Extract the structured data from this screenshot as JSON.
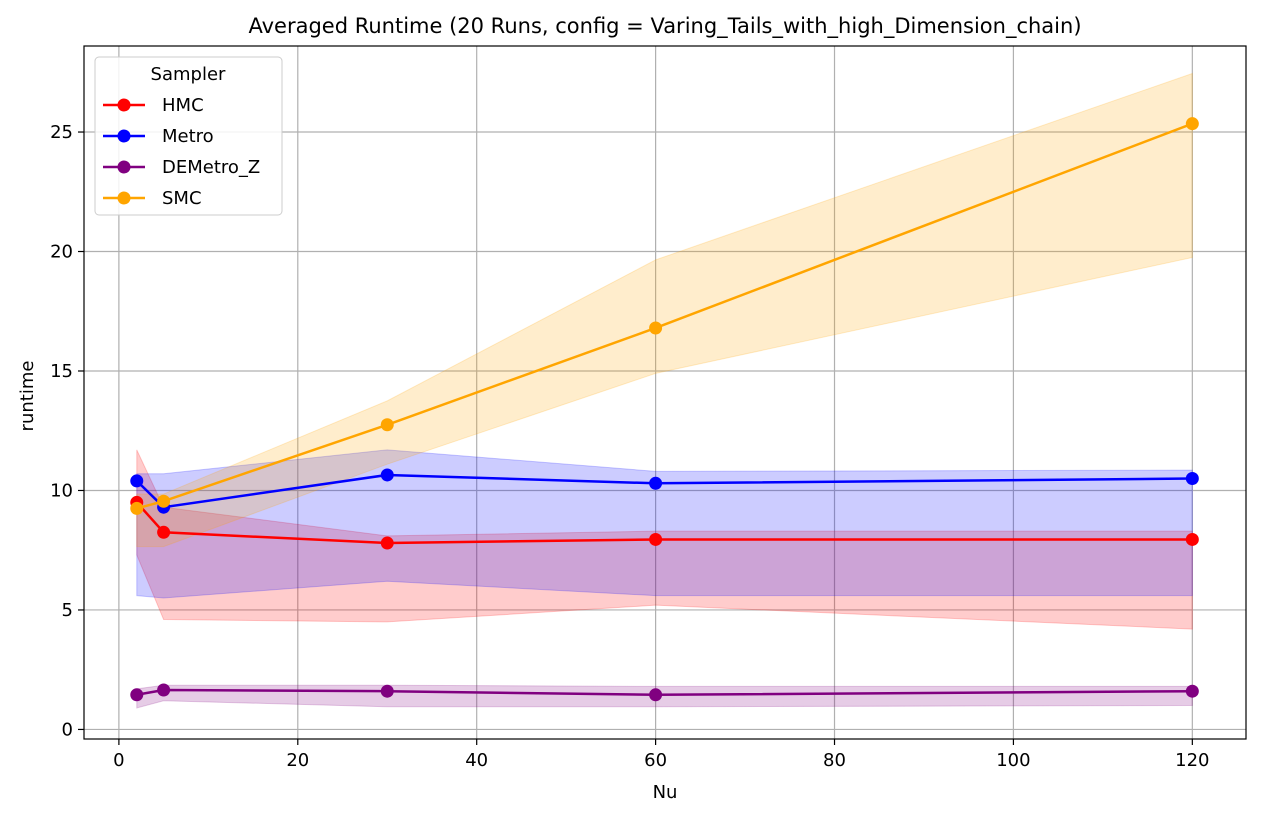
{
  "chart_data": {
    "type": "line",
    "title": "Averaged Runtime (20 Runs, config = Varing_Tails_with_high_Dimension_chain)",
    "xlabel": "Nu",
    "ylabel": "runtime",
    "xlim": [
      -3.9,
      126
    ],
    "ylim": [
      -0.4,
      28.6
    ],
    "xticks": [
      0,
      20,
      40,
      60,
      80,
      100,
      120
    ],
    "yticks": [
      0,
      5,
      10,
      15,
      20,
      25
    ],
    "grid": true,
    "legend": {
      "title": "Sampler",
      "placement": "top-left"
    },
    "x": [
      2,
      5,
      30,
      60,
      120
    ],
    "series": [
      {
        "name": "HMC",
        "color": "#ff0000",
        "band_color": "rgba(255,0,0,0.2)",
        "values": [
          9.5,
          8.25,
          7.8,
          7.95,
          7.95
        ],
        "lower": [
          7.3,
          4.6,
          4.5,
          5.2,
          4.2
        ],
        "upper": [
          11.7,
          9.3,
          8.1,
          8.3,
          8.3
        ]
      },
      {
        "name": "Metro",
        "color": "#0000ff",
        "band_color": "rgba(0,0,255,0.2)",
        "values": [
          10.4,
          9.3,
          10.65,
          10.3,
          10.5
        ],
        "lower": [
          5.6,
          5.5,
          6.2,
          5.6,
          5.6
        ],
        "upper": [
          10.7,
          10.7,
          11.7,
          10.8,
          10.85
        ]
      },
      {
        "name": "DEMetro_Z",
        "color": "#800080",
        "band_color": "rgba(128,0,128,0.2)",
        "values": [
          1.45,
          1.65,
          1.6,
          1.45,
          1.6
        ],
        "lower": [
          0.9,
          1.2,
          0.95,
          0.95,
          1.0
        ],
        "upper": [
          1.7,
          1.85,
          1.85,
          1.8,
          1.8
        ]
      },
      {
        "name": "SMC",
        "color": "#ffa500",
        "band_color": "rgba(255,165,0,0.2)",
        "values": [
          9.25,
          9.55,
          12.75,
          16.8,
          25.35
        ],
        "lower": [
          7.65,
          7.65,
          11.1,
          14.9,
          19.75
        ],
        "upper": [
          9.85,
          9.85,
          13.75,
          19.65,
          27.45
        ]
      }
    ]
  }
}
